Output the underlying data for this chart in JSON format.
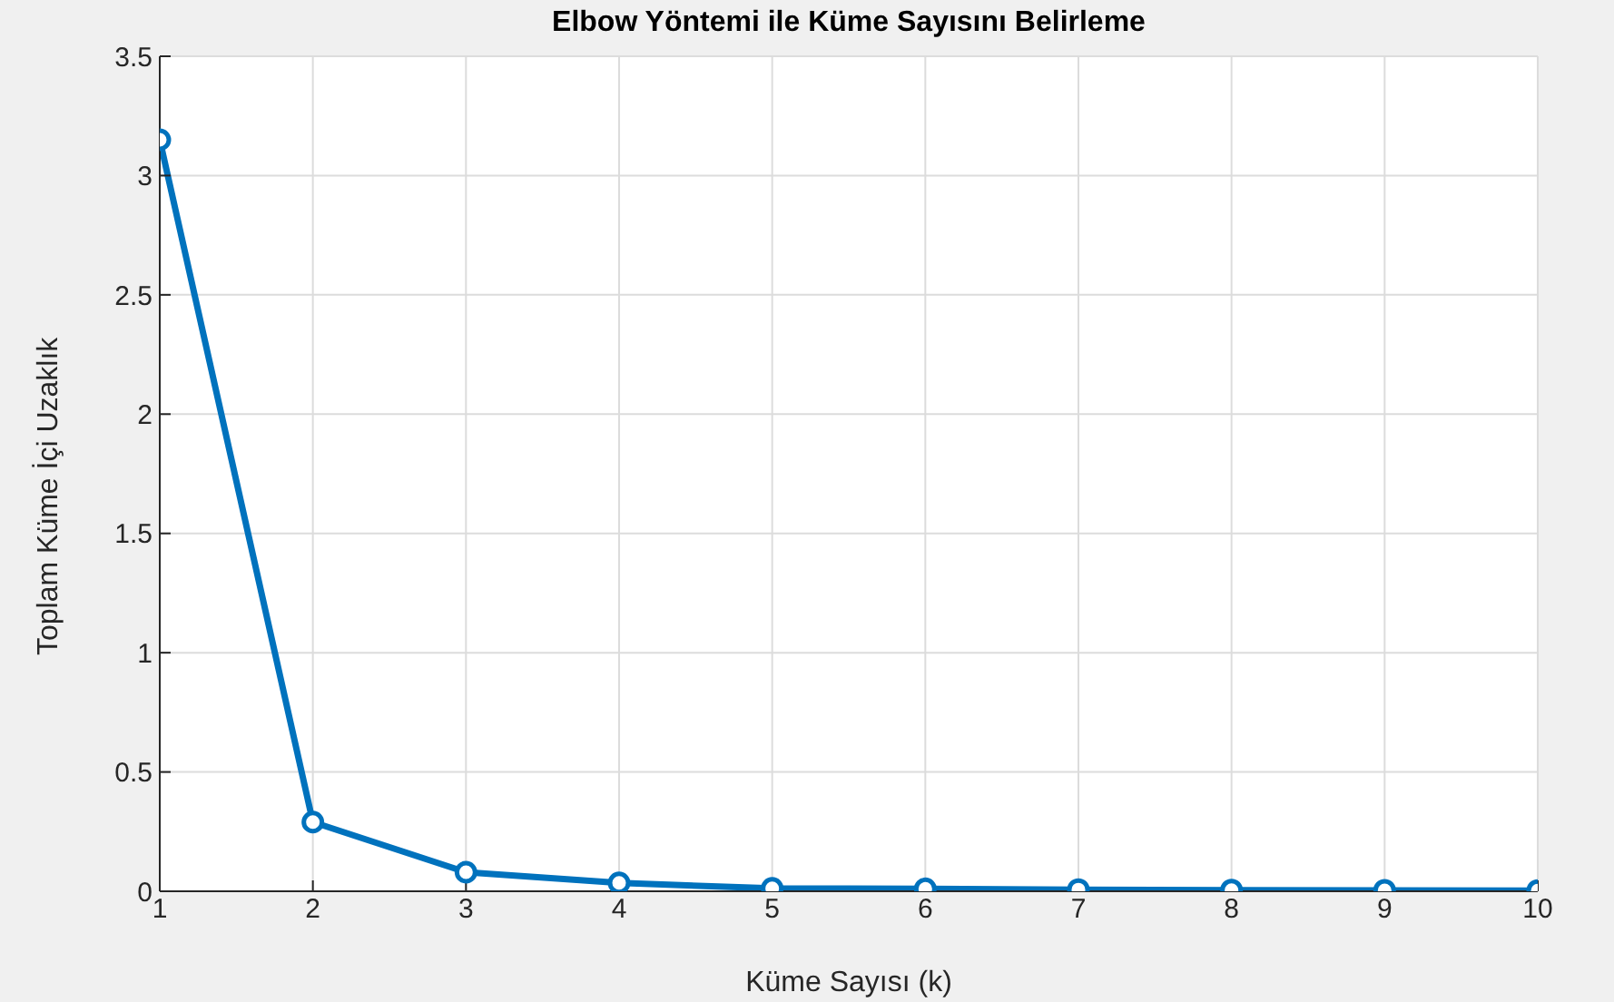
{
  "chart_data": {
    "type": "line",
    "title": "Elbow Yöntemi ile Küme Sayısını Belirleme",
    "xlabel": "Küme Sayısı (k)",
    "ylabel": "Toplam Küme İçi Uzaklık",
    "x": [
      1,
      2,
      3,
      4,
      5,
      6,
      7,
      8,
      9,
      10
    ],
    "series": [
      {
        "color": "#0072bd",
        "values": [
          3.15,
          0.29,
          0.08,
          0.035,
          0.012,
          0.01,
          0.007,
          0.005,
          0.004,
          0.003
        ]
      }
    ],
    "xlim": [
      1,
      10
    ],
    "xticks": [
      1,
      2,
      3,
      4,
      5,
      6,
      7,
      8,
      9,
      10
    ],
    "ylim": [
      0,
      3.5
    ],
    "yticks": [
      0,
      0.5,
      1,
      1.5,
      2,
      2.5,
      3,
      3.5
    ],
    "grid": true,
    "marker": "circle",
    "line_style": "solid",
    "legend": false
  }
}
